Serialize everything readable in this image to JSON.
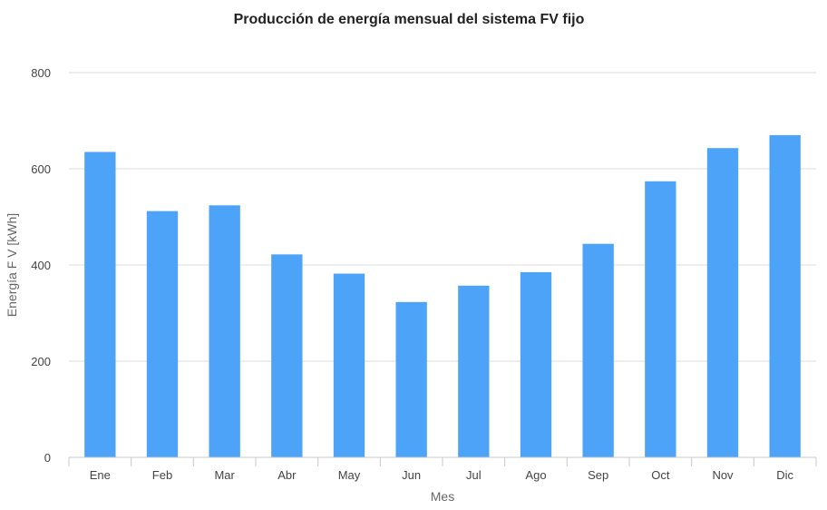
{
  "chart_data": {
    "type": "bar",
    "title": "Producción de energía mensual del sistema FV fijo",
    "xlabel": "Mes",
    "ylabel": "Energía F V [kWh]",
    "categories": [
      "Ene",
      "Feb",
      "Mar",
      "Abr",
      "May",
      "Jun",
      "Jul",
      "Ago",
      "Sep",
      "Oct",
      "Nov",
      "Dic"
    ],
    "values": [
      635,
      512,
      524,
      422,
      382,
      323,
      357,
      385,
      444,
      574,
      643,
      670
    ],
    "ylim": [
      0,
      800
    ],
    "yticks": [
      0,
      200,
      400,
      600,
      800
    ],
    "grid": true,
    "legend": "none",
    "bar_color": "#4da3f7"
  }
}
